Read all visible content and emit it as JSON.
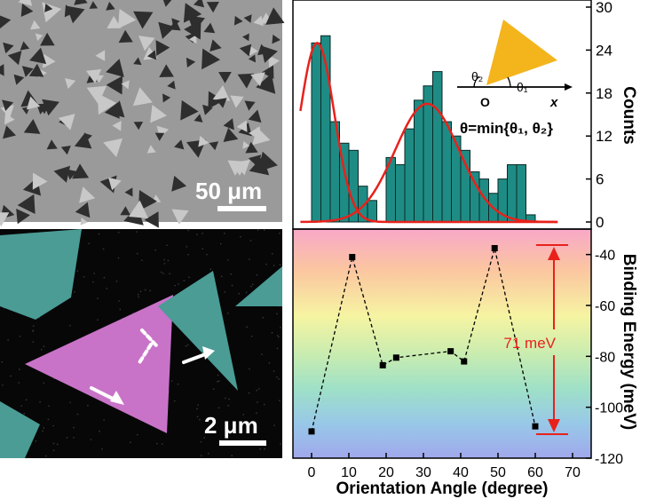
{
  "sem_image": {
    "scale_bar_label": "50 μm",
    "colors": {
      "background": "#9a9a9a",
      "triangle": "#3a3a3a"
    }
  },
  "false_color_image": {
    "scale_bar_label": "2 μm",
    "colors": {
      "background": "#070707",
      "magenta_flake": "#c873c8",
      "teal_flake": "#4a9c95",
      "arrow": "#ffffff"
    }
  },
  "chart_data": [
    {
      "type": "bar",
      "panel": "histogram",
      "ylabel": "Counts",
      "ylim": [
        0,
        30
      ],
      "yticks": [
        "0",
        "6",
        "12",
        "18",
        "24",
        "30"
      ],
      "bin_width": 2.5,
      "bin_starts": [
        0,
        2.5,
        5,
        7.5,
        10,
        12.5,
        15,
        17.5,
        20,
        22.5,
        25,
        27.5,
        30,
        32.5,
        35,
        37.5,
        40,
        42.5,
        45,
        47.5,
        50,
        52.5,
        55,
        57.5
      ],
      "values": [
        25,
        26,
        14,
        11,
        10,
        5,
        3,
        0,
        9,
        8,
        13,
        17,
        19,
        21,
        14,
        12,
        10,
        7,
        6,
        4,
        6,
        8,
        8,
        1
      ],
      "fit_curves": [
        {
          "center": 1.5,
          "sigma": 4.6,
          "amplitude": 25
        },
        {
          "center": 31,
          "sigma": 8.6,
          "amplitude": 16.5
        }
      ],
      "annotation": {
        "formula": "θ=min{θ₁, θ₂}",
        "theta1_label": "θ₁",
        "theta2_label": "θ₂",
        "origin_label": "O",
        "axis_label": "x"
      },
      "colors": {
        "bar": "#1e8c84",
        "bar_edge": "#0a2a27",
        "fit": "#e8211c",
        "triangle": "#f4b41c"
      }
    },
    {
      "type": "line",
      "panel": "binding-energy",
      "xlabel": "Orientation Angle (degree)",
      "ylabel": "Binding Energy (meV)",
      "xlim": [
        -5,
        75
      ],
      "ylim": [
        -120,
        -30
      ],
      "xticks": [
        "0",
        "10",
        "20",
        "30",
        "40",
        "50",
        "60",
        "70"
      ],
      "yticks": [
        "-40",
        "-60",
        "-80",
        "-100",
        "-120"
      ],
      "x": [
        0,
        10.9,
        19.1,
        22.7,
        37.3,
        40.9,
        49.1,
        60
      ],
      "y": [
        -109.5,
        -41,
        -83.5,
        -80.5,
        -78,
        -82,
        -37.5,
        -107.5
      ],
      "annotation": "71 meV",
      "annotation_range": [
        -37.5,
        -109.5
      ],
      "colors": {
        "marker": "#000000",
        "line": "#000000",
        "arrow": "#e8211c"
      }
    }
  ]
}
